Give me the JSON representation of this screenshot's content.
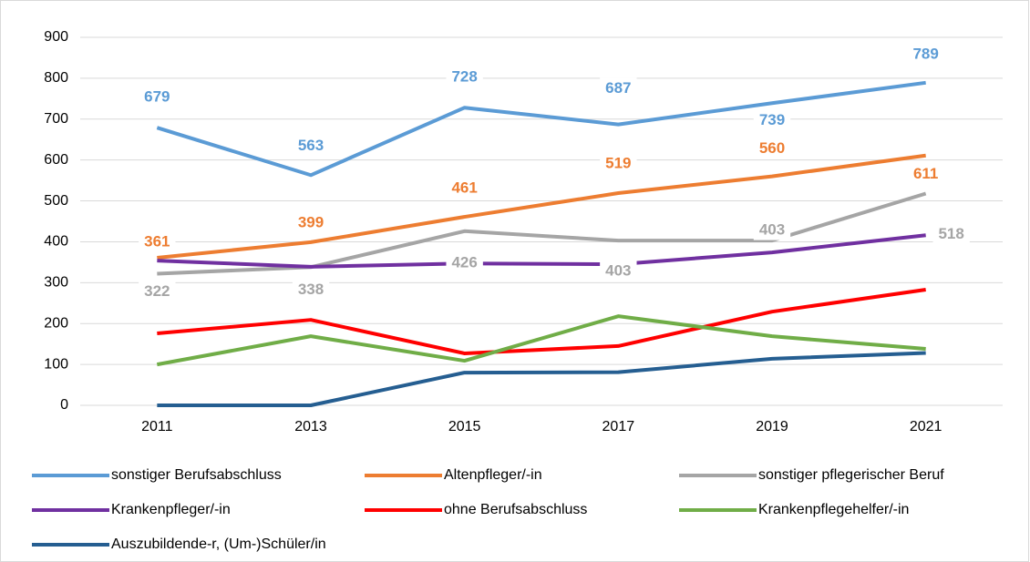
{
  "chart_data": {
    "type": "line",
    "categories": [
      "2011",
      "2013",
      "2015",
      "2017",
      "2019",
      "2021"
    ],
    "ylim": [
      0,
      900
    ],
    "yticks": [
      0,
      100,
      200,
      300,
      400,
      500,
      600,
      700,
      800,
      900
    ],
    "grid": true,
    "series": [
      {
        "name": "sonstiger Berufsabschluss",
        "color": "#5b9bd5",
        "values": [
          679,
          563,
          728,
          687,
          739,
          789
        ],
        "labels": true
      },
      {
        "name": "Altenpfleger/-in",
        "color": "#ed7d31",
        "values": [
          361,
          399,
          461,
          519,
          560,
          611
        ],
        "labels": true
      },
      {
        "name": "sonstiger pflegerischer Beruf",
        "color": "#a5a5a5",
        "values": [
          322,
          338,
          426,
          403,
          403,
          518
        ],
        "labels": true
      },
      {
        "name": "Krankenpfleger/-in",
        "color": "#7030a0",
        "values": [
          354,
          339,
          347,
          345,
          374,
          416
        ]
      },
      {
        "name": "ohne Berufsabschluss",
        "color": "#ff0000",
        "values": [
          176,
          209,
          127,
          145,
          229,
          283
        ]
      },
      {
        "name": "Krankenpflegehelfer/-in",
        "color": "#70ad47",
        "values": [
          100,
          169,
          109,
          218,
          169,
          138
        ]
      },
      {
        "name": "Auszubildende-r, (Um-)Schüler/in",
        "color": "#255e91",
        "values": [
          0,
          0,
          80,
          81,
          114,
          128
        ]
      }
    ]
  }
}
